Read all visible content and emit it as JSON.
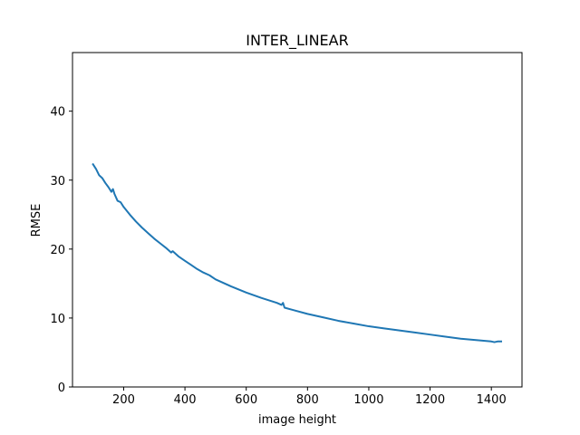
{
  "chart_data": {
    "type": "line",
    "title": "INTER_LINEAR",
    "xlabel": "image height",
    "ylabel": "RMSE",
    "xlim": [
      33,
      1500
    ],
    "ylim": [
      0,
      48.5
    ],
    "xticks": [
      200,
      400,
      600,
      800,
      1000,
      1200,
      1400
    ],
    "yticks": [
      0,
      10,
      20,
      30,
      40
    ],
    "grid": false,
    "legend": "none",
    "colors": {
      "line": "#1f77b4",
      "axes": "#000000"
    },
    "series": [
      {
        "x": [
          100,
          110,
          120,
          130,
          140,
          150,
          160,
          165,
          170,
          180,
          190,
          200,
          220,
          240,
          260,
          280,
          300,
          320,
          340,
          355,
          360,
          380,
          400,
          420,
          440,
          460,
          480,
          500,
          550,
          600,
          650,
          700,
          715,
          720,
          725,
          750,
          800,
          850,
          900,
          950,
          1000,
          1050,
          1100,
          1150,
          1200,
          1250,
          1300,
          1350,
          1400,
          1410,
          1420,
          1432
        ],
        "y": [
          32.3,
          31.6,
          30.7,
          30.3,
          29.6,
          29.0,
          28.3,
          28.7,
          28.0,
          27.0,
          26.8,
          26.1,
          25.0,
          24.0,
          23.1,
          22.3,
          21.5,
          20.8,
          20.1,
          19.5,
          19.7,
          18.9,
          18.3,
          17.7,
          17.1,
          16.6,
          16.2,
          15.6,
          14.6,
          13.7,
          12.9,
          12.2,
          11.9,
          12.2,
          11.5,
          11.2,
          10.6,
          10.1,
          9.6,
          9.2,
          8.8,
          8.5,
          8.2,
          7.9,
          7.6,
          7.3,
          7.0,
          6.8,
          6.6,
          6.5,
          6.6,
          6.6
        ]
      }
    ]
  }
}
